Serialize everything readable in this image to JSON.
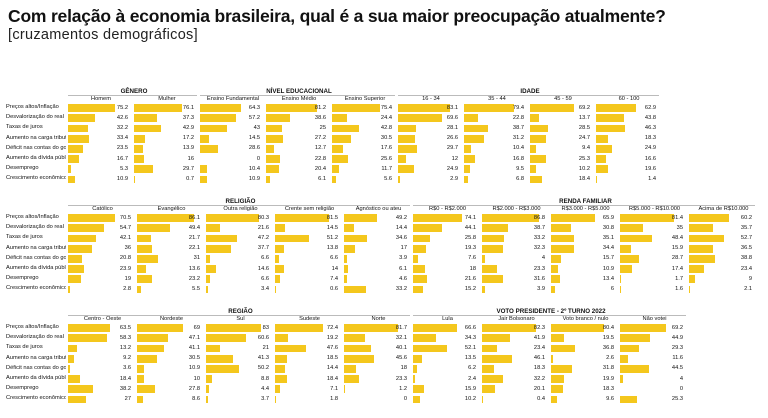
{
  "title": "Com relação à economia brasileira, qual é a sua maior preocupação atualmente?",
  "subtitle": "[cruzamentos demográficos]",
  "colors": {
    "bar": "#f4c71d"
  },
  "chart_data": [
    {
      "type": "bar",
      "rows": [
        "Preços altos/Inflação",
        "Desvalorização do real",
        "Taxas de juros",
        "Aumento na carga tributária",
        "Déficit nas contas do governo",
        "Aumento da dívida pública",
        "Desemprego",
        "Crescimento econômico"
      ],
      "groups": [
        {
          "title": "GÊNERO",
          "columns": [
            {
              "name": "Homem",
              "values": [
                75.2,
                42.6,
                32.2,
                33.4,
                23.5,
                16.7,
                5.3,
                10.9
              ]
            },
            {
              "name": "Mulher",
              "values": [
                76.1,
                37.3,
                42.9,
                17.2,
                13.9,
                16,
                29.7,
                0.7
              ]
            }
          ]
        },
        {
          "title": "NÍVEL EDUCACIONAL",
          "columns": [
            {
              "name": "Ensino Fundamental",
              "values": [
                64.3,
                57.2,
                43,
                14.5,
                28.6,
                0,
                10.4,
                10.9
              ]
            },
            {
              "name": "Ensino Médio",
              "values": [
                81.2,
                38.6,
                25,
                27.2,
                12.7,
                22.8,
                20.4,
                6.1
              ]
            },
            {
              "name": "Ensino Superior",
              "values": [
                75.4,
                24.4,
                42.8,
                30.5,
                17.6,
                25.6,
                11.7,
                5.6
              ]
            }
          ]
        },
        {
          "title": "IDADE",
          "columns": [
            {
              "name": "16 - 34",
              "values": [
                83.1,
                69.6,
                28.1,
                26.6,
                29.7,
                12,
                24.9,
                2.9
              ]
            },
            {
              "name": "35 - 44",
              "values": [
                79.4,
                22.8,
                38.7,
                31.2,
                10.4,
                16.8,
                9.5,
                6.8
              ]
            },
            {
              "name": "45 - 59",
              "values": [
                69.2,
                13.7,
                28.5,
                24.7,
                9.4,
                25.3,
                10.2,
                18.4
              ]
            },
            {
              "name": "60 - 100",
              "values": [
                62.9,
                43.8,
                46.3,
                18.3,
                24.9,
                16.6,
                19.6,
                1.4
              ]
            }
          ]
        }
      ]
    },
    {
      "type": "bar",
      "rows": [
        "Preços altos/Inflação",
        "Desvalorização do real",
        "Taxas de juros",
        "Aumento na carga tributária",
        "Déficit nas contas do governo",
        "Aumento da dívida pública",
        "Desemprego",
        "Crescimento econômico"
      ],
      "groups": [
        {
          "title": "RELIGIÃO",
          "columns": [
            {
              "name": "Católico",
              "values": [
                70.5,
                54.7,
                42.1,
                36,
                20.8,
                23.9,
                19,
                2.8
              ]
            },
            {
              "name": "Evangélico",
              "values": [
                86.1,
                49.4,
                21.7,
                22.1,
                31,
                13.6,
                23.2,
                5.5
              ]
            },
            {
              "name": "Outra religião",
              "values": [
                80.3,
                21.6,
                47.2,
                37.7,
                6.6,
                14.6,
                6.6,
                3.4
              ]
            },
            {
              "name": "Crente sem religião",
              "values": [
                81.5,
                14.5,
                51.2,
                13.8,
                6.6,
                14,
                7.4,
                0.6
              ]
            },
            {
              "name": "Agnóstico ou ateu",
              "values": [
                49.2,
                14.4,
                34.6,
                17,
                3.9,
                6.1,
                4.6,
                33.2
              ]
            }
          ]
        },
        {
          "title": "RENDA FAMILIAR",
          "columns": [
            {
              "name": "R$0 - R$2.000",
              "values": [
                74.1,
                44.1,
                25.8,
                19.3,
                7.6,
                18,
                21.6,
                15.2
              ]
            },
            {
              "name": "R$2.000 - R$3.000",
              "values": [
                86.8,
                38.7,
                33.2,
                32.3,
                4,
                23.3,
                31.6,
                3.9
              ]
            },
            {
              "name": "R$3.000 - R$5.000",
              "values": [
                65.9,
                30.8,
                35.1,
                34.4,
                15.7,
                10.9,
                13.4,
                6
              ]
            },
            {
              "name": "R$5.000 - R$10.000",
              "values": [
                81.4,
                35,
                48.4,
                15.9,
                28.7,
                17.4,
                1.7,
                1.6
              ]
            },
            {
              "name": "Acima de R$10.000",
              "values": [
                60.2,
                35.7,
                52.7,
                36.5,
                38.8,
                23.4,
                9,
                2.1
              ]
            }
          ]
        }
      ]
    },
    {
      "type": "bar",
      "rows": [
        "Preços altos/Inflação",
        "Desvalorização do real",
        "Taxas de juros",
        "Aumento na carga tributária",
        "Déficit nas contas do governo",
        "Aumento da dívida pública",
        "Desemprego",
        "Crescimento econômico"
      ],
      "groups": [
        {
          "title": "REGIÃO",
          "columns": [
            {
              "name": "Centro - Oeste",
              "values": [
                63.5,
                58.3,
                13.2,
                9.2,
                3.6,
                18.4,
                38.2,
                27
              ]
            },
            {
              "name": "Nordeste",
              "values": [
                69,
                47.1,
                41.1,
                30.5,
                10.9,
                10,
                27.8,
                8.6
              ]
            },
            {
              "name": "Sul",
              "values": [
                83,
                60.6,
                21,
                41.3,
                50.2,
                8.8,
                4.4,
                3.7
              ]
            },
            {
              "name": "Sudeste",
              "values": [
                72.4,
                19.2,
                47.6,
                18.5,
                14.4,
                18.4,
                7.1,
                1.8
              ]
            },
            {
              "name": "Norte",
              "values": [
                81.7,
                32.1,
                40.1,
                45.6,
                18,
                23.3,
                1.2,
                0
              ]
            }
          ]
        },
        {
          "title": "VOTO PRESIDENTE - 2º TURNO 2022",
          "columns": [
            {
              "name": "Lula",
              "values": [
                66.6,
                34.3,
                52.1,
                13.5,
                6.2,
                2.4,
                15.9,
                10.2
              ]
            },
            {
              "name": "Jair Bolsonaro",
              "values": [
                82.3,
                41.9,
                23.4,
                46.1,
                18.3,
                32.2,
                20.1,
                0.4
              ]
            },
            {
              "name": "Voto branco / nulo",
              "values": [
                80.4,
                19.5,
                36.8,
                2.6,
                31.8,
                19.9,
                18.3,
                9.6
              ]
            },
            {
              "name": "Não votei",
              "values": [
                69.2,
                44.9,
                29.3,
                11.6,
                44.5,
                4,
                0,
                25.3
              ]
            }
          ]
        }
      ]
    }
  ]
}
